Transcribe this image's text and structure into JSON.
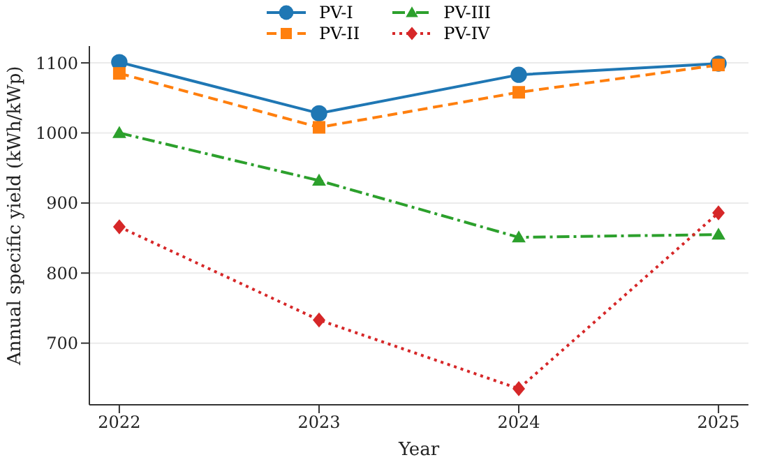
{
  "chart_data": {
    "type": "line",
    "xlabel": "Year",
    "ylabel": "Annual specific yield (kWh/kWp)",
    "x": [
      2022,
      2023,
      2024,
      2025
    ],
    "xlim": [
      2021.85,
      2025.15
    ],
    "xticks": [
      2022,
      2023,
      2024,
      2025
    ],
    "ylim": [
      612,
      1124
    ],
    "yticks": [
      700,
      800,
      900,
      1000,
      1100
    ],
    "grid": "y",
    "legend": "top",
    "series": [
      {
        "name": "PV-I",
        "color": "#1f77b4",
        "values": [
          1101,
          1028,
          1083,
          1099
        ],
        "marker": "circle",
        "line_style": "solid"
      },
      {
        "name": "PV-II",
        "color": "#ff7f0e",
        "values": [
          1085,
          1008,
          1058,
          1097
        ],
        "marker": "square",
        "line_style": "dashed"
      },
      {
        "name": "PV-III",
        "color": "#2ca02c",
        "values": [
          1000,
          932,
          851,
          855
        ],
        "marker": "triangle",
        "line_style": "dashdot"
      },
      {
        "name": "PV-IV",
        "color": "#d62728",
        "values": [
          866,
          733,
          635,
          886
        ],
        "marker": "diamond",
        "line_style": "dotted"
      }
    ]
  }
}
